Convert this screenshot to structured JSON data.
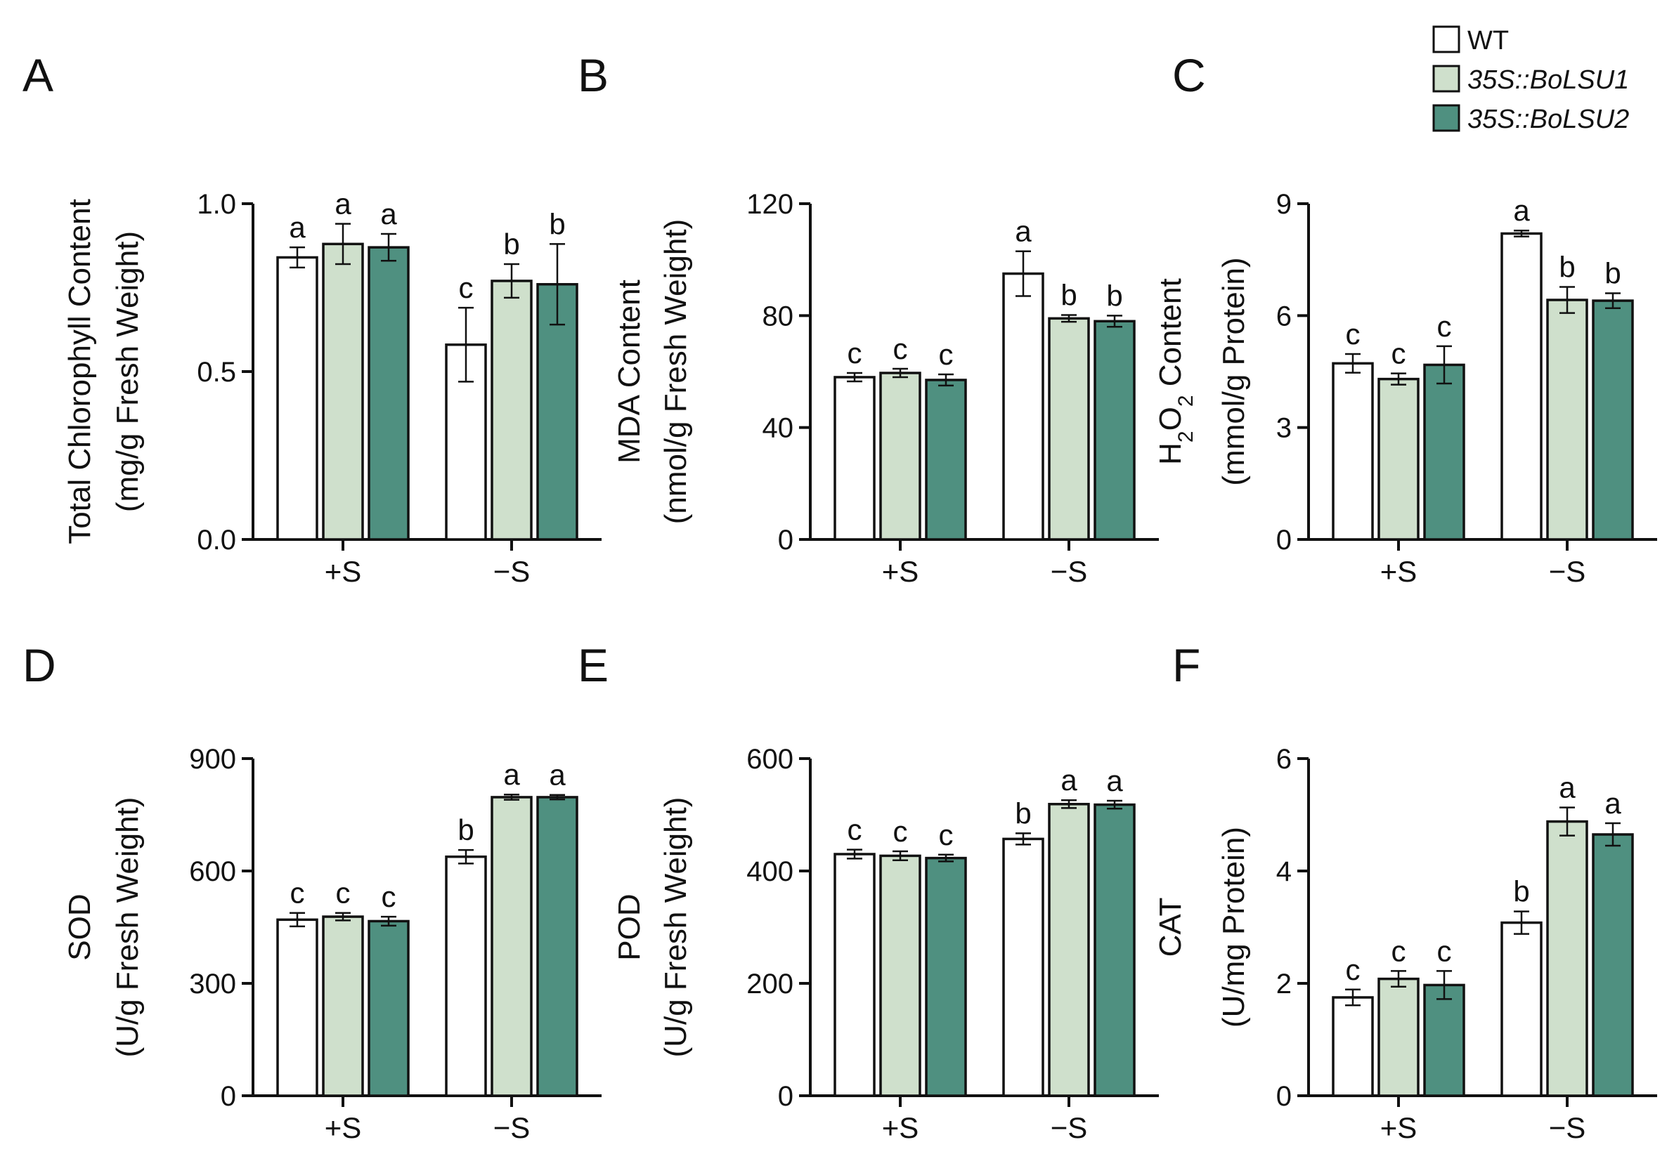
{
  "legend": {
    "placement": "top-right",
    "items": [
      {
        "label": "WT",
        "italic": false
      },
      {
        "label": "35S::BoLSU1",
        "italic": true
      },
      {
        "label": "35S::BoLSU2",
        "italic": true
      }
    ]
  },
  "colors": {
    "WT": "#ffffff",
    "35S::BoLSU1": "#cfe0cc",
    "35S::BoLSU2": "#4f9080",
    "axis": "#111111"
  },
  "chart_data": [
    {
      "panel": "A",
      "type": "bar",
      "ylabel_line1": "Total Chlorophyll Content",
      "ylabel_line2": "(mg/g Fresh Weight)",
      "ylim": [
        0,
        1.0
      ],
      "yticks": [
        "0.0",
        "0.5",
        "1.0"
      ],
      "categories": [
        "+S",
        "−S"
      ],
      "series": [
        {
          "name": "WT",
          "values": [
            0.84,
            0.58
          ],
          "errors": [
            0.03,
            0.11
          ],
          "letters": [
            "a",
            "c"
          ]
        },
        {
          "name": "35S::BoLSU1",
          "values": [
            0.88,
            0.77
          ],
          "errors": [
            0.06,
            0.05
          ],
          "letters": [
            "a",
            "b"
          ]
        },
        {
          "name": "35S::BoLSU2",
          "values": [
            0.87,
            0.76
          ],
          "errors": [
            0.04,
            0.12
          ],
          "letters": [
            "a",
            "b"
          ]
        }
      ]
    },
    {
      "panel": "B",
      "type": "bar",
      "ylabel_line1": "MDA Content",
      "ylabel_line2": "(nmol/g Fresh Weight)",
      "ylim": [
        0,
        120
      ],
      "yticks": [
        "0",
        "40",
        "80",
        "120"
      ],
      "categories": [
        "+S",
        "−S"
      ],
      "series": [
        {
          "name": "WT",
          "values": [
            58,
            95
          ],
          "errors": [
            1.5,
            8
          ],
          "letters": [
            "c",
            "a"
          ]
        },
        {
          "name": "35S::BoLSU1",
          "values": [
            59.5,
            79
          ],
          "errors": [
            1.5,
            1.2
          ],
          "letters": [
            "c",
            "b"
          ]
        },
        {
          "name": "35S::BoLSU2",
          "values": [
            57,
            78
          ],
          "errors": [
            2,
            2
          ],
          "letters": [
            "c",
            "b"
          ]
        }
      ]
    },
    {
      "panel": "C",
      "type": "bar",
      "ylabel_line1": "H2O2 Content",
      "ylabel_line2": "(mmol/g Protein)",
      "ylim": [
        0,
        9
      ],
      "yticks": [
        "0",
        "3",
        "6",
        "9"
      ],
      "categories": [
        "+S",
        "−S"
      ],
      "series": [
        {
          "name": "WT",
          "values": [
            4.72,
            8.2
          ],
          "errors": [
            0.25,
            0.08
          ],
          "letters": [
            "c",
            "a"
          ]
        },
        {
          "name": "35S::BoLSU1",
          "values": [
            4.3,
            6.42
          ],
          "errors": [
            0.15,
            0.35
          ],
          "letters": [
            "c",
            "b"
          ]
        },
        {
          "name": "35S::BoLSU2",
          "values": [
            4.68,
            6.4
          ],
          "errors": [
            0.5,
            0.2
          ],
          "letters": [
            "c",
            "b"
          ]
        }
      ]
    },
    {
      "panel": "D",
      "type": "bar",
      "ylabel_line1": "SOD",
      "ylabel_line2": "(U/g Fresh Weight)",
      "ylim": [
        0,
        900
      ],
      "yticks": [
        "0",
        "300",
        "600",
        "900"
      ],
      "categories": [
        "+S",
        "−S"
      ],
      "series": [
        {
          "name": "WT",
          "values": [
            470,
            638
          ],
          "errors": [
            18,
            18
          ],
          "letters": [
            "c",
            "b"
          ]
        },
        {
          "name": "35S::BoLSU1",
          "values": [
            478,
            797
          ],
          "errors": [
            10,
            7
          ],
          "letters": [
            "c",
            "a"
          ]
        },
        {
          "name": "35S::BoLSU2",
          "values": [
            466,
            797
          ],
          "errors": [
            12,
            6
          ],
          "letters": [
            "c",
            "a"
          ]
        }
      ]
    },
    {
      "panel": "E",
      "type": "bar",
      "ylabel_line1": "POD",
      "ylabel_line2": "(U/g Fresh Weight)",
      "ylim": [
        0,
        600
      ],
      "yticks": [
        "0",
        "200",
        "400",
        "600"
      ],
      "categories": [
        "+S",
        "−S"
      ],
      "series": [
        {
          "name": "WT",
          "values": [
            430,
            457
          ],
          "errors": [
            8,
            10
          ],
          "letters": [
            "c",
            "b"
          ]
        },
        {
          "name": "35S::BoLSU1",
          "values": [
            427,
            519
          ],
          "errors": [
            8,
            7
          ],
          "letters": [
            "c",
            "a"
          ]
        },
        {
          "name": "35S::BoLSU2",
          "values": [
            423,
            518
          ],
          "errors": [
            6,
            7
          ],
          "letters": [
            "c",
            "a"
          ]
        }
      ]
    },
    {
      "panel": "F",
      "type": "bar",
      "ylabel_line1": "CAT",
      "ylabel_line2": "(U/mg Protein)",
      "ylim": [
        0,
        6
      ],
      "yticks": [
        "0",
        "2",
        "4",
        "6"
      ],
      "categories": [
        "+S",
        "−S"
      ],
      "series": [
        {
          "name": "WT",
          "values": [
            1.75,
            3.08
          ],
          "errors": [
            0.14,
            0.2
          ],
          "letters": [
            "c",
            "b"
          ]
        },
        {
          "name": "35S::BoLSU1",
          "values": [
            2.08,
            4.88
          ],
          "errors": [
            0.14,
            0.25
          ],
          "letters": [
            "c",
            "a"
          ]
        },
        {
          "name": "35S::BoLSU2",
          "values": [
            1.97,
            4.65
          ],
          "errors": [
            0.25,
            0.2
          ],
          "letters": [
            "c",
            "a"
          ]
        }
      ]
    }
  ]
}
